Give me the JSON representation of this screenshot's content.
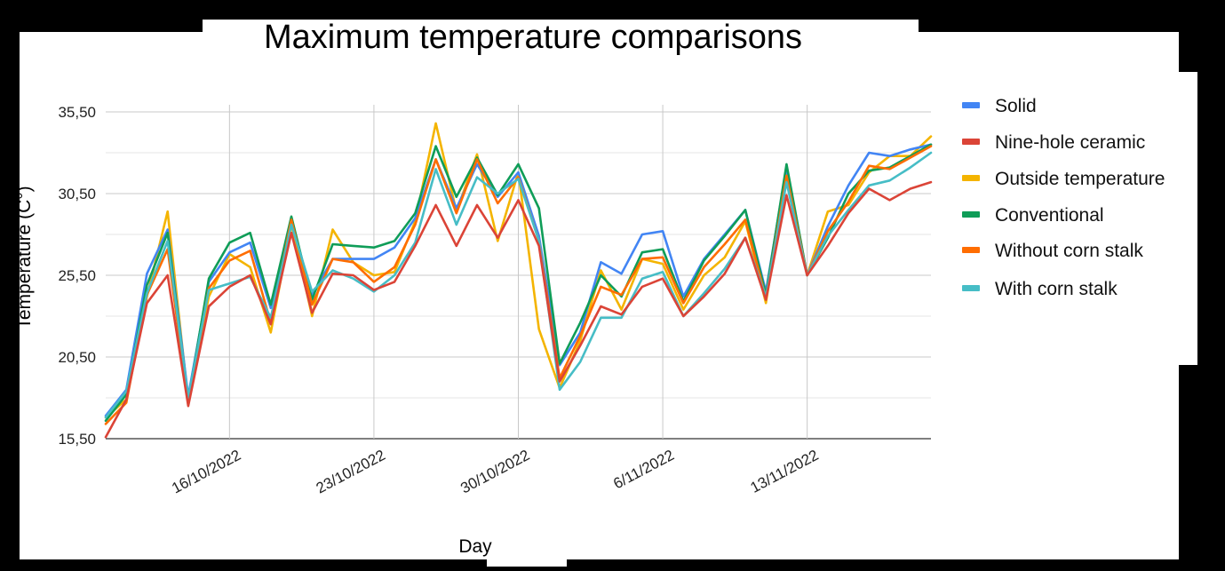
{
  "chart_data": {
    "type": "line",
    "title": "Maximum temperature comparisons",
    "xlabel": "Day",
    "ylabel": "Temperature (C°)",
    "yticks": [
      "15,50",
      "20,50",
      "25,50",
      "30,50",
      "35,50"
    ],
    "ytick_values": [
      15.5,
      20.5,
      25.5,
      30.5,
      35.5
    ],
    "ylim": [
      15.5,
      35.5
    ],
    "xlim": [
      "2022-10-10",
      "2022-11-19"
    ],
    "xticks": [
      "16/10/2022",
      "23/10/2022",
      "30/10/2022",
      "6/11/2022",
      "13/11/2022"
    ],
    "xtick_dates": [
      "2022-10-16",
      "2022-10-23",
      "2022-10-30",
      "2022-11-06",
      "2022-11-13"
    ],
    "grid": true,
    "legend_position": "right",
    "x": [
      "2022-10-10",
      "2022-10-11",
      "2022-10-12",
      "2022-10-13",
      "2022-10-14",
      "2022-10-15",
      "2022-10-16",
      "2022-10-17",
      "2022-10-18",
      "2022-10-19",
      "2022-10-20",
      "2022-10-21",
      "2022-10-22",
      "2022-10-23",
      "2022-10-24",
      "2022-10-25",
      "2022-10-26",
      "2022-10-27",
      "2022-10-28",
      "2022-10-29",
      "2022-10-30",
      "2022-10-31",
      "2022-11-01",
      "2022-11-02",
      "2022-11-03",
      "2022-11-04",
      "2022-11-05",
      "2022-11-06",
      "2022-11-07",
      "2022-11-08",
      "2022-11-09",
      "2022-11-10",
      "2022-11-11",
      "2022-11-12",
      "2022-11-13",
      "2022-11-14",
      "2022-11-15",
      "2022-11-16",
      "2022-11-17",
      "2022-11-18",
      "2022-11-19"
    ],
    "series": [
      {
        "name": "Solid",
        "color": "#4285f4",
        "values": [
          16.9,
          18.5,
          25.6,
          28.3,
          18.1,
          25.1,
          26.9,
          27.5,
          23.5,
          28.8,
          24.3,
          26.5,
          26.5,
          26.5,
          27.2,
          29.0,
          32.6,
          29.6,
          32.3,
          30.3,
          31.8,
          27.9,
          20.0,
          22.0,
          26.3,
          25.6,
          28.0,
          28.2,
          24.2,
          26.5,
          28.0,
          29.5,
          24.5,
          32.1,
          25.5,
          28.5,
          31.0,
          33.0,
          32.8,
          33.2,
          33.5
        ]
      },
      {
        "name": "Nine-hole ceramic",
        "color": "#db4437",
        "values": [
          15.6,
          17.9,
          23.8,
          25.5,
          17.5,
          23.6,
          24.8,
          25.5,
          22.5,
          28.1,
          23.2,
          25.6,
          25.5,
          24.6,
          25.1,
          27.3,
          29.8,
          27.3,
          29.8,
          27.8,
          30.1,
          27.3,
          19.0,
          21.2,
          23.6,
          23.1,
          24.8,
          25.3,
          23.0,
          24.2,
          25.6,
          27.8,
          24.0,
          30.4,
          25.5,
          27.3,
          29.3,
          30.8,
          30.1,
          30.8,
          31.2
        ]
      },
      {
        "name": "Outside temperature",
        "color": "#f4b400",
        "values": [
          16.8,
          17.9,
          24.2,
          29.4,
          17.8,
          24.2,
          26.8,
          26.0,
          22.0,
          28.6,
          23.0,
          28.3,
          26.3,
          25.5,
          25.7,
          28.8,
          34.8,
          29.4,
          32.9,
          27.6,
          31.8,
          22.2,
          18.6,
          21.5,
          25.8,
          23.4,
          26.5,
          26.2,
          23.4,
          25.5,
          26.6,
          28.8,
          23.8,
          31.7,
          25.5,
          29.4,
          29.8,
          31.8,
          32.8,
          32.8,
          34.0
        ]
      },
      {
        "name": "Conventional",
        "color": "#0f9d58",
        "values": [
          16.6,
          18.2,
          24.9,
          28.1,
          17.8,
          25.3,
          27.5,
          28.1,
          23.7,
          29.1,
          24.0,
          27.4,
          27.3,
          27.2,
          27.6,
          29.3,
          33.4,
          30.3,
          32.7,
          30.4,
          32.3,
          29.6,
          20.1,
          22.6,
          25.5,
          24.2,
          26.9,
          27.1,
          23.9,
          26.4,
          27.9,
          29.5,
          24.3,
          32.3,
          25.5,
          27.8,
          30.5,
          31.9,
          32.1,
          32.8,
          33.5
        ]
      },
      {
        "name": "Without corn stalk",
        "color": "#ff6d01",
        "values": [
          16.4,
          17.7,
          24.3,
          27.1,
          17.6,
          24.7,
          26.4,
          27.0,
          22.6,
          28.9,
          23.7,
          26.5,
          26.3,
          25.1,
          26.0,
          28.6,
          32.6,
          29.3,
          32.6,
          29.9,
          31.5,
          27.6,
          19.2,
          21.8,
          24.8,
          24.3,
          26.5,
          26.6,
          23.8,
          26.0,
          27.4,
          28.9,
          24.1,
          31.6,
          25.5,
          28.2,
          30.0,
          32.2,
          32.0,
          32.7,
          33.4
        ]
      },
      {
        "name": "With corn stalk",
        "color": "#46bdc6",
        "values": [
          16.8,
          18.4,
          24.4,
          27.6,
          18.0,
          24.6,
          25.0,
          25.4,
          22.9,
          28.6,
          24.5,
          25.8,
          25.3,
          24.5,
          25.5,
          27.5,
          32.0,
          28.6,
          31.5,
          30.5,
          31.4,
          27.6,
          18.5,
          20.2,
          22.9,
          22.9,
          25.3,
          25.7,
          23.0,
          24.4,
          25.9,
          27.8,
          24.2,
          31.2,
          25.5,
          27.9,
          29.5,
          31.0,
          31.3,
          32.1,
          33.0
        ]
      }
    ]
  }
}
